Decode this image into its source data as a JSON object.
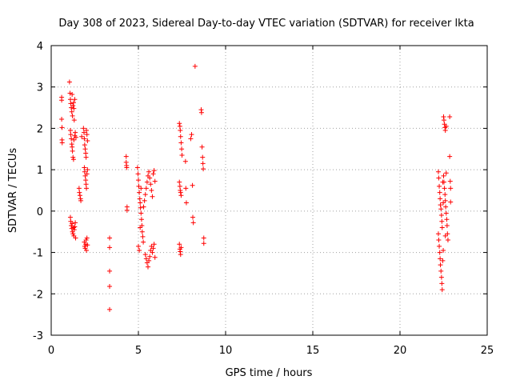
{
  "chart_data": {
    "type": "scatter",
    "title": "Day 308 of 2023, Sidereal Day-to-day VTEC variation (SDTVAR) for receiver lkta",
    "xlabel": "GPS time / hours",
    "ylabel": "SDTVAR / TECUs",
    "xlim": [
      0,
      25
    ],
    "ylim": [
      -3,
      4
    ],
    "xticks": [
      0,
      5,
      10,
      15,
      20,
      25
    ],
    "yticks": [
      -3,
      -2,
      -1,
      0,
      1,
      2,
      3,
      4
    ],
    "xtick_labels": [
      "0",
      "5",
      "10",
      "15",
      "20",
      "25"
    ],
    "ytick_labels": [
      "-3",
      "-2",
      "-1",
      "0",
      "1",
      "2",
      "3",
      "4"
    ],
    "grid": true,
    "marker": "+",
    "series": [
      {
        "name": "SDTVAR",
        "color": "#ff0000",
        "points": [
          [
            0.6,
            2.75
          ],
          [
            0.6,
            2.68
          ],
          [
            0.6,
            2.22
          ],
          [
            0.62,
            2.02
          ],
          [
            0.62,
            1.72
          ],
          [
            0.63,
            1.65
          ],
          [
            1.05,
            3.12
          ],
          [
            1.08,
            2.85
          ],
          [
            1.1,
            2.7
          ],
          [
            1.12,
            2.6
          ],
          [
            1.15,
            2.5
          ],
          [
            1.18,
            2.4
          ],
          [
            1.2,
            2.82
          ],
          [
            1.22,
            2.3
          ],
          [
            1.25,
            2.55
          ],
          [
            1.28,
            2.62
          ],
          [
            1.3,
            2.48
          ],
          [
            1.32,
            2.2
          ],
          [
            1.35,
            2.7
          ],
          [
            1.1,
            1.95
          ],
          [
            1.12,
            1.85
          ],
          [
            1.15,
            1.75
          ],
          [
            1.18,
            1.62
          ],
          [
            1.2,
            1.55
          ],
          [
            1.22,
            1.45
          ],
          [
            1.25,
            1.3
          ],
          [
            1.28,
            1.25
          ],
          [
            1.3,
            1.72
          ],
          [
            1.35,
            1.82
          ],
          [
            1.38,
            1.9
          ],
          [
            1.42,
            1.78
          ],
          [
            1.1,
            -0.15
          ],
          [
            1.12,
            -0.25
          ],
          [
            1.15,
            -0.35
          ],
          [
            1.18,
            -0.42
          ],
          [
            1.2,
            -0.3
          ],
          [
            1.22,
            -0.5
          ],
          [
            1.25,
            -0.55
          ],
          [
            1.28,
            -0.4
          ],
          [
            1.3,
            -0.6
          ],
          [
            1.32,
            -0.45
          ],
          [
            1.35,
            -0.38
          ],
          [
            1.38,
            -0.28
          ],
          [
            1.4,
            -0.65
          ],
          [
            1.6,
            0.55
          ],
          [
            1.62,
            0.45
          ],
          [
            1.65,
            0.38
          ],
          [
            1.68,
            0.3
          ],
          [
            1.7,
            0.25
          ],
          [
            1.75,
            1.8
          ],
          [
            1.85,
            2.0
          ],
          [
            1.88,
            1.9
          ],
          [
            1.9,
            1.75
          ],
          [
            1.92,
            1.6
          ],
          [
            1.95,
            1.5
          ],
          [
            1.98,
            1.4
          ],
          [
            2.0,
            1.3
          ],
          [
            2.02,
            1.95
          ],
          [
            2.05,
            1.85
          ],
          [
            2.08,
            1.7
          ],
          [
            1.9,
            1.05
          ],
          [
            1.92,
            0.95
          ],
          [
            1.95,
            0.85
          ],
          [
            1.98,
            0.75
          ],
          [
            2.0,
            0.65
          ],
          [
            2.02,
            0.55
          ],
          [
            2.05,
            0.9
          ],
          [
            2.08,
            1.0
          ],
          [
            1.9,
            -0.75
          ],
          [
            1.92,
            -0.85
          ],
          [
            1.95,
            -0.9
          ],
          [
            1.98,
            -0.8
          ],
          [
            2.0,
            -0.7
          ],
          [
            2.02,
            -0.95
          ],
          [
            2.05,
            -0.65
          ],
          [
            2.08,
            -0.82
          ],
          [
            3.35,
            -0.65
          ],
          [
            3.35,
            -0.88
          ],
          [
            3.35,
            -1.45
          ],
          [
            3.35,
            -1.82
          ],
          [
            3.35,
            -2.38
          ],
          [
            4.3,
            1.32
          ],
          [
            4.3,
            1.18
          ],
          [
            4.32,
            1.1
          ],
          [
            4.33,
            1.05
          ],
          [
            4.35,
            0.1
          ],
          [
            4.35,
            0.02
          ],
          [
            4.95,
            1.05
          ],
          [
            4.98,
            0.9
          ],
          [
            5.0,
            0.75
          ],
          [
            5.02,
            0.6
          ],
          [
            5.05,
            0.45
          ],
          [
            5.08,
            0.3
          ],
          [
            5.1,
            0.2
          ],
          [
            5.12,
            0.08
          ],
          [
            5.15,
            -0.05
          ],
          [
            5.18,
            -0.2
          ],
          [
            5.2,
            -0.35
          ],
          [
            5.22,
            -0.5
          ],
          [
            5.25,
            -0.62
          ],
          [
            5.28,
            -0.75
          ],
          [
            5.0,
            -0.85
          ],
          [
            5.05,
            -0.95
          ],
          [
            5.1,
            -0.4
          ],
          [
            5.15,
            0.55
          ],
          [
            5.3,
            0.1
          ],
          [
            5.35,
            0.25
          ],
          [
            5.4,
            0.4
          ],
          [
            5.45,
            0.55
          ],
          [
            5.5,
            0.7
          ],
          [
            5.55,
            0.85
          ],
          [
            5.6,
            0.95
          ],
          [
            5.65,
            0.8
          ],
          [
            5.7,
            0.65
          ],
          [
            5.75,
            0.5
          ],
          [
            5.8,
            0.35
          ],
          [
            5.85,
            0.9
          ],
          [
            5.9,
            0.98
          ],
          [
            5.95,
            0.72
          ],
          [
            5.4,
            -1.05
          ],
          [
            5.45,
            -1.15
          ],
          [
            5.5,
            -1.25
          ],
          [
            5.55,
            -1.35
          ],
          [
            5.6,
            -1.2
          ],
          [
            5.65,
            -1.1
          ],
          [
            5.7,
            -0.95
          ],
          [
            5.75,
            -0.85
          ],
          [
            5.8,
            -1.0
          ],
          [
            5.85,
            -0.9
          ],
          [
            5.9,
            -0.8
          ],
          [
            5.95,
            -1.12
          ],
          [
            7.35,
            2.12
          ],
          [
            7.38,
            2.05
          ],
          [
            7.4,
            1.95
          ],
          [
            7.42,
            1.8
          ],
          [
            7.45,
            1.65
          ],
          [
            7.48,
            1.5
          ],
          [
            7.5,
            1.35
          ],
          [
            7.35,
            0.7
          ],
          [
            7.38,
            0.6
          ],
          [
            7.4,
            0.5
          ],
          [
            7.42,
            0.45
          ],
          [
            7.45,
            0.38
          ],
          [
            7.35,
            -0.8
          ],
          [
            7.38,
            -0.92
          ],
          [
            7.4,
            -0.98
          ],
          [
            7.42,
            -1.05
          ],
          [
            7.45,
            -0.88
          ],
          [
            7.7,
            1.2
          ],
          [
            7.72,
            0.55
          ],
          [
            7.75,
            0.2
          ],
          [
            8.0,
            1.75
          ],
          [
            8.05,
            1.85
          ],
          [
            8.1,
            0.62
          ],
          [
            8.12,
            -0.15
          ],
          [
            8.15,
            -0.28
          ],
          [
            8.25,
            3.5
          ],
          [
            8.6,
            2.45
          ],
          [
            8.62,
            2.38
          ],
          [
            8.65,
            1.55
          ],
          [
            8.68,
            1.3
          ],
          [
            8.7,
            1.15
          ],
          [
            8.72,
            1.02
          ],
          [
            8.75,
            -0.65
          ],
          [
            8.75,
            -0.78
          ],
          [
            22.2,
            0.95
          ],
          [
            22.22,
            0.8
          ],
          [
            22.25,
            0.6
          ],
          [
            22.28,
            0.45
          ],
          [
            22.3,
            0.3
          ],
          [
            22.32,
            0.15
          ],
          [
            22.35,
            0.05
          ],
          [
            22.38,
            -0.1
          ],
          [
            22.4,
            -0.25
          ],
          [
            22.42,
            -0.4
          ],
          [
            22.45,
            0.7
          ],
          [
            22.48,
            0.2
          ],
          [
            22.2,
            -0.55
          ],
          [
            22.22,
            -0.7
          ],
          [
            22.25,
            -0.85
          ],
          [
            22.28,
            -1.0
          ],
          [
            22.3,
            -1.15
          ],
          [
            22.32,
            -1.3
          ],
          [
            22.35,
            -1.45
          ],
          [
            22.38,
            -1.6
          ],
          [
            22.4,
            -1.75
          ],
          [
            22.42,
            -1.9
          ],
          [
            22.45,
            -1.2
          ],
          [
            22.48,
            -0.95
          ],
          [
            22.5,
            2.28
          ],
          [
            22.52,
            2.2
          ],
          [
            22.55,
            2.1
          ],
          [
            22.58,
            2.02
          ],
          [
            22.6,
            1.95
          ],
          [
            22.65,
            2.05
          ],
          [
            22.5,
            0.85
          ],
          [
            22.52,
            0.7
          ],
          [
            22.55,
            0.55
          ],
          [
            22.58,
            0.4
          ],
          [
            22.6,
            0.25
          ],
          [
            22.62,
            0.1
          ],
          [
            22.65,
            -0.05
          ],
          [
            22.68,
            -0.2
          ],
          [
            22.7,
            -0.35
          ],
          [
            22.72,
            -0.55
          ],
          [
            22.75,
            -0.7
          ],
          [
            22.6,
            -0.6
          ],
          [
            22.65,
            0.92
          ],
          [
            22.85,
            2.28
          ],
          [
            22.85,
            1.32
          ],
          [
            22.88,
            0.72
          ],
          [
            22.9,
            0.55
          ],
          [
            22.9,
            0.22
          ]
        ]
      }
    ]
  }
}
